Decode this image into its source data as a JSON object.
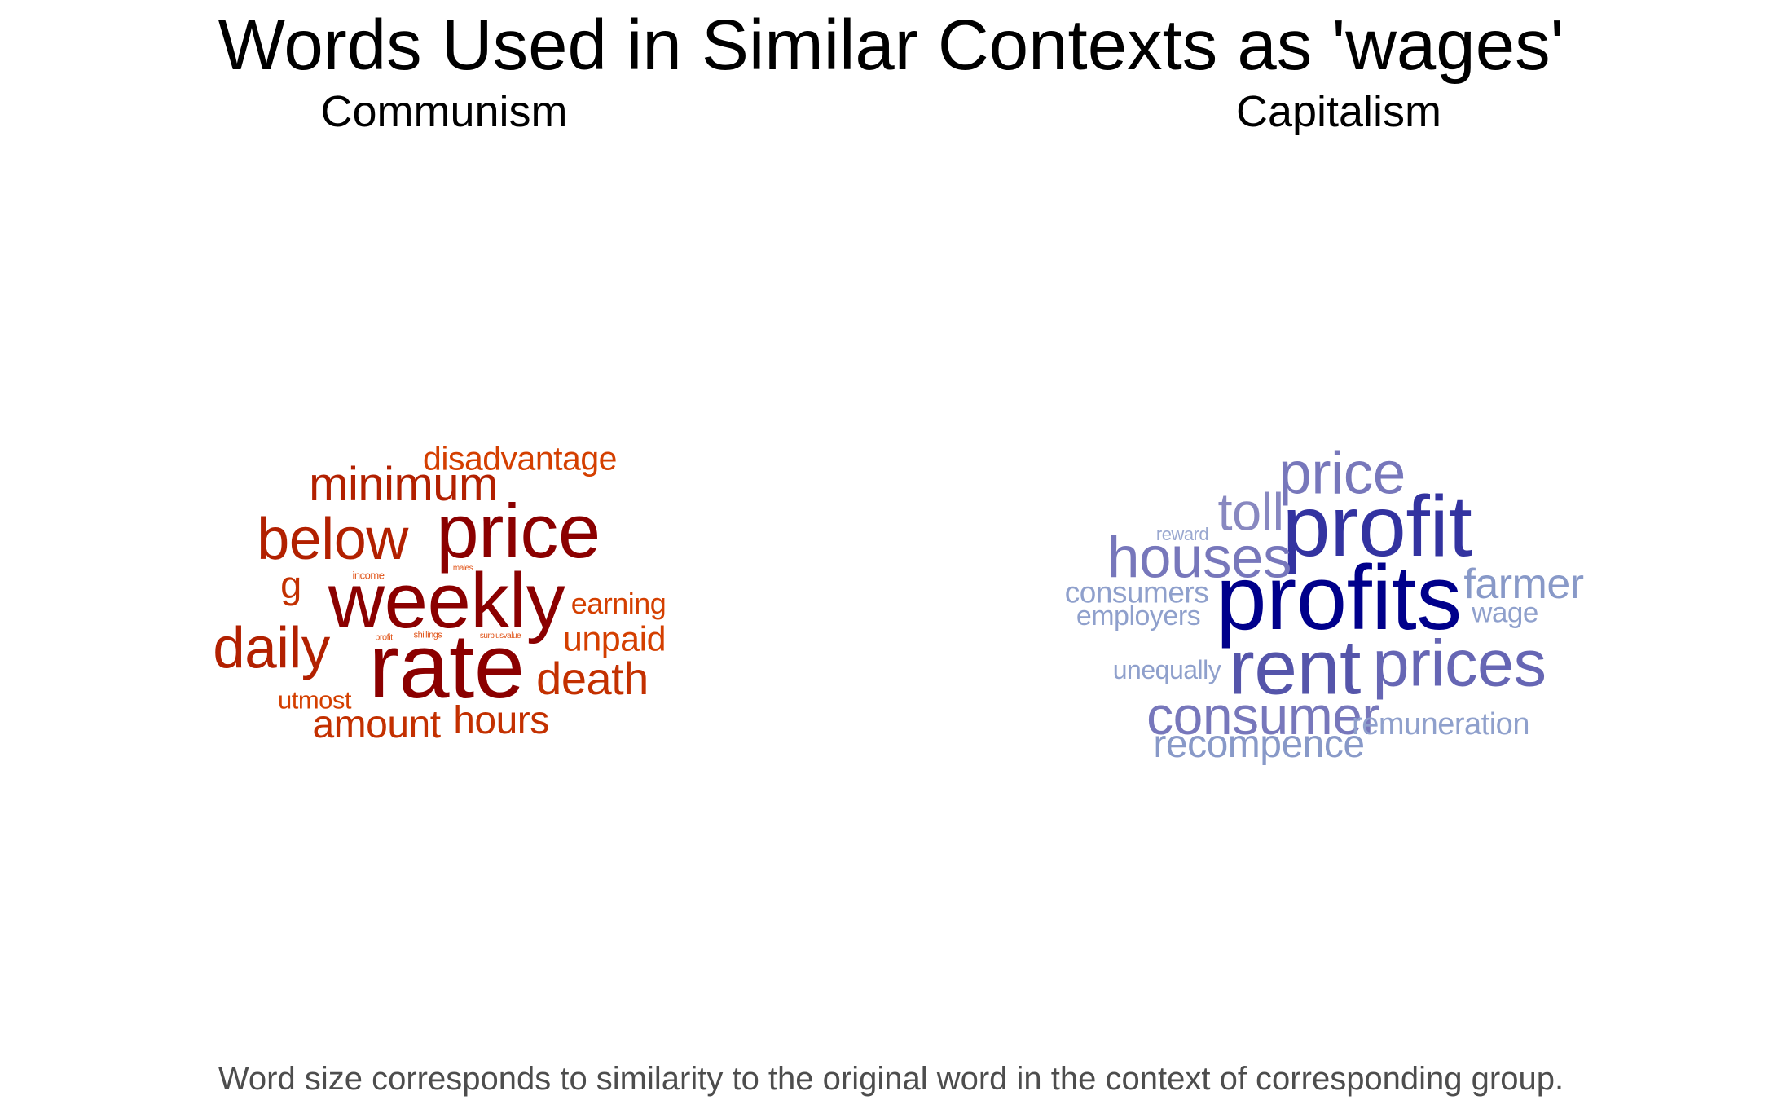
{
  "title": "Words Used in Similar Contexts as 'wages'",
  "caption": "Word size corresponds to similarity to the original word in the context of corresponding group.",
  "chart_data": [
    {
      "type": "wordcloud",
      "title": "Communism",
      "colors": {
        "strong": "#8b0000",
        "mid": "#b22000",
        "weak": "#d43f00"
      },
      "words": [
        {
          "word": "rate",
          "weight": 1.0,
          "color": "#8b0000"
        },
        {
          "word": "weekly",
          "weight": 0.86,
          "color": "#8b0000"
        },
        {
          "word": "price",
          "weight": 0.84,
          "color": "#8b0000"
        },
        {
          "word": "below",
          "weight": 0.64,
          "color": "#b22000"
        },
        {
          "word": "daily",
          "weight": 0.63,
          "color": "#b22000"
        },
        {
          "word": "minimum",
          "weight": 0.52,
          "color": "#b22000"
        },
        {
          "word": "death",
          "weight": 0.5,
          "color": "#c33000"
        },
        {
          "word": "hours",
          "weight": 0.43,
          "color": "#c33000"
        },
        {
          "word": "amount",
          "weight": 0.43,
          "color": "#c33000"
        },
        {
          "word": "g",
          "weight": 0.42,
          "color": "#c33000"
        },
        {
          "word": "unpaid",
          "weight": 0.38,
          "color": "#d43f00"
        },
        {
          "word": "disadvantage",
          "weight": 0.37,
          "color": "#d43f00"
        },
        {
          "word": "earning",
          "weight": 0.32,
          "color": "#d43f00"
        },
        {
          "word": "utmost",
          "weight": 0.28,
          "color": "#d43f00"
        },
        {
          "word": "income",
          "weight": 0.12,
          "color": "#e0551a"
        },
        {
          "word": "profit",
          "weight": 0.1,
          "color": "#e0551a"
        },
        {
          "word": "shillings",
          "weight": 0.1,
          "color": "#e0551a"
        },
        {
          "word": "surplusvalue",
          "weight": 0.09,
          "color": "#e0551a"
        },
        {
          "word": "males",
          "weight": 0.08,
          "color": "#e0551a"
        }
      ]
    },
    {
      "type": "wordcloud",
      "title": "Capitalism",
      "colors": {
        "strong": "#000080",
        "mid": "#5a5ab0",
        "weak": "#8c96c8"
      },
      "words": [
        {
          "word": "profits",
          "weight": 1.0,
          "color": "#00008b"
        },
        {
          "word": "profit",
          "weight": 0.95,
          "color": "#3333a0"
        },
        {
          "word": "rent",
          "weight": 0.85,
          "color": "#5555aa"
        },
        {
          "word": "prices",
          "weight": 0.72,
          "color": "#6666b4"
        },
        {
          "word": "price",
          "weight": 0.65,
          "color": "#7777bb"
        },
        {
          "word": "houses",
          "weight": 0.63,
          "color": "#7777bb"
        },
        {
          "word": "consumer",
          "weight": 0.59,
          "color": "#7777bb"
        },
        {
          "word": "toll",
          "weight": 0.58,
          "color": "#8888c0"
        },
        {
          "word": "farmer",
          "weight": 0.46,
          "color": "#8899c8"
        },
        {
          "word": "recompence",
          "weight": 0.43,
          "color": "#8899c8"
        },
        {
          "word": "remuneration",
          "weight": 0.34,
          "color": "#8fa0cc"
        },
        {
          "word": "consumers",
          "weight": 0.33,
          "color": "#8fa0cc"
        },
        {
          "word": "wage",
          "weight": 0.31,
          "color": "#8fa0cc"
        },
        {
          "word": "employers",
          "weight": 0.3,
          "color": "#8fa0cc"
        },
        {
          "word": "unequally",
          "weight": 0.29,
          "color": "#8fa0cc"
        },
        {
          "word": "reward",
          "weight": 0.2,
          "color": "#9aa8d0"
        }
      ]
    }
  ]
}
